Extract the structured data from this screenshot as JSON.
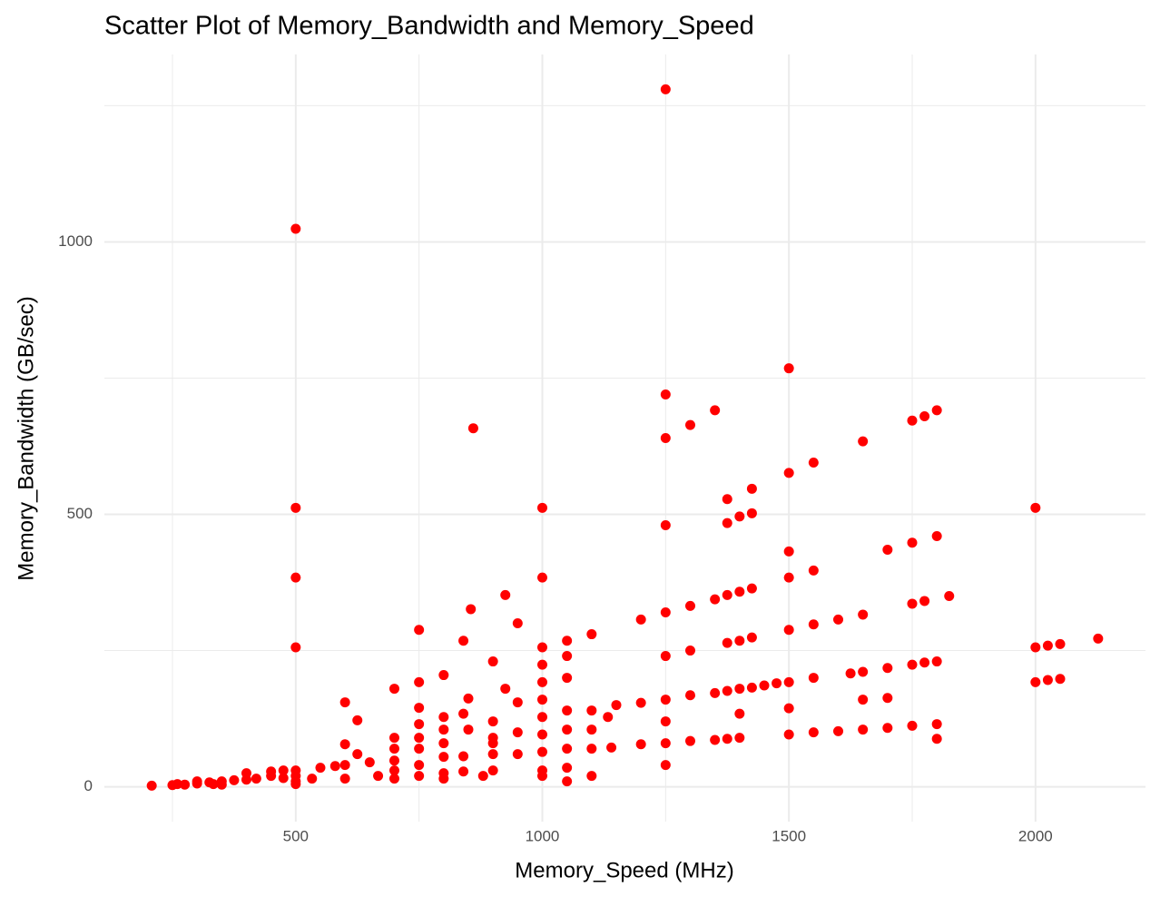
{
  "chart_data": {
    "type": "scatter",
    "title": "Scatter Plot of Memory_Bandwidth and Memory_Speed",
    "x_label": "Memory_Speed (MHz)",
    "y_label": "Memory_Bandwidth (GB/sec)",
    "xlim": [
      112,
      2223
    ],
    "ylim": [
      -64,
      1344
    ],
    "xticks": [
      500,
      1000,
      1500,
      2000
    ],
    "yticks": [
      0,
      500,
      1000
    ],
    "x_minor_grid": [
      250,
      750,
      1250,
      1750
    ],
    "y_minor_grid": [
      250,
      750,
      1250
    ],
    "grid": true,
    "series": [
      {
        "name": "Memory_Bandwidth",
        "color": "#ff0000",
        "x": [
          208,
          250,
          260,
          275,
          300,
          300,
          325,
          333,
          350,
          350,
          375,
          400,
          400,
          420,
          450,
          450,
          475,
          475,
          500,
          500,
          500,
          500,
          500,
          500,
          500,
          500,
          533,
          550,
          580,
          600,
          600,
          600,
          600,
          625,
          625,
          650,
          667,
          700,
          700,
          700,
          700,
          700,
          700,
          750,
          750,
          750,
          750,
          750,
          750,
          750,
          750,
          800,
          800,
          800,
          800,
          800,
          800,
          800,
          840,
          840,
          840,
          840,
          850,
          850,
          855,
          860,
          880,
          900,
          900,
          900,
          900,
          900,
          900,
          925,
          925,
          950,
          950,
          950,
          950,
          1000,
          1000,
          1000,
          1000,
          1000,
          1000,
          1000,
          1000,
          1000,
          1000,
          1000,
          1050,
          1050,
          1050,
          1050,
          1050,
          1050,
          1050,
          1050,
          1100,
          1100,
          1100,
          1100,
          1100,
          1133,
          1140,
          1150,
          1200,
          1200,
          1200,
          1250,
          1250,
          1250,
          1250,
          1250,
          1250,
          1250,
          1250,
          1250,
          1250,
          1300,
          1300,
          1300,
          1300,
          1300,
          1350,
          1350,
          1350,
          1350,
          1375,
          1375,
          1375,
          1375,
          1375,
          1375,
          1400,
          1400,
          1400,
          1400,
          1400,
          1400,
          1425,
          1425,
          1425,
          1425,
          1425,
          1450,
          1475,
          1500,
          1500,
          1500,
          1500,
          1500,
          1500,
          1500,
          1500,
          1550,
          1550,
          1550,
          1550,
          1550,
          1600,
          1600,
          1625,
          1650,
          1650,
          1650,
          1650,
          1650,
          1700,
          1700,
          1700,
          1700,
          1750,
          1750,
          1750,
          1750,
          1750,
          1775,
          1775,
          1775,
          1800,
          1800,
          1800,
          1800,
          1800,
          1825,
          2000,
          2000,
          2000,
          2025,
          2025,
          2050,
          2050,
          2127
        ],
        "values": [
          2,
          3,
          5,
          4,
          6,
          10,
          8,
          5,
          10,
          4,
          12,
          13,
          25,
          15,
          20,
          28,
          16,
          30,
          10,
          20,
          30,
          5,
          256,
          384,
          512,
          1024,
          15,
          35,
          38,
          15,
          40,
          78,
          155,
          60,
          122,
          45,
          20,
          15,
          30,
          48,
          70,
          90,
          180,
          20,
          40,
          70,
          90,
          115,
          145,
          192,
          288,
          15,
          25,
          55,
          80,
          105,
          128,
          205,
          28,
          56,
          134,
          268,
          105,
          162,
          326,
          658,
          20,
          30,
          60,
          80,
          90,
          120,
          230,
          180,
          352,
          60,
          100,
          155,
          300,
          20,
          30,
          64,
          96,
          128,
          160,
          192,
          224,
          256,
          384,
          512,
          10,
          35,
          70,
          105,
          140,
          200,
          240,
          268,
          20,
          70,
          105,
          140,
          280,
          128,
          72,
          150,
          78,
          154,
          307,
          40,
          80,
          120,
          160,
          240,
          320,
          480,
          640,
          720,
          1280,
          84,
          168,
          250,
          332,
          664,
          86,
          172,
          344,
          691,
          88,
          176,
          264,
          352,
          484,
          528,
          90,
          134,
          180,
          268,
          358,
          496,
          182,
          274,
          364,
          502,
          547,
          186,
          190,
          96,
          144,
          192,
          288,
          384,
          432,
          576,
          768,
          100,
          200,
          298,
          397,
          595,
          102,
          307,
          208,
          105,
          160,
          211,
          316,
          634,
          108,
          163,
          218,
          435,
          112,
          224,
          336,
          448,
          672,
          228,
          341,
          680,
          88,
          115,
          230,
          460,
          691,
          350,
          192,
          256,
          512,
          196,
          259,
          198,
          262,
          272
        ]
      }
    ]
  }
}
